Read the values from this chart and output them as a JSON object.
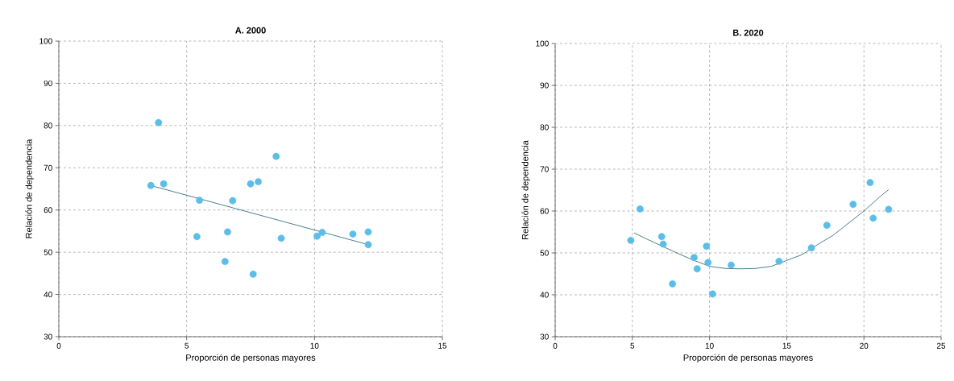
{
  "chart_data": [
    {
      "type": "scatter",
      "title": "**A. 2000**",
      "xlabel": "Proporción de personas mayores",
      "ylabel": "Relación de dependencia",
      "xlim": [
        0,
        15
      ],
      "xticks": [
        0,
        5,
        10,
        15
      ],
      "ylim": [
        30,
        100
      ],
      "yticks": [
        30,
        40,
        50,
        60,
        70,
        80,
        90,
        100
      ],
      "grid": true,
      "series": [
        {
          "type": "scatter",
          "marker": "circle",
          "color": "#5bbde8",
          "x": [
            3.6,
            3.9,
            4.1,
            5.5,
            5.4,
            6.5,
            6.6,
            6.8,
            7.5,
            7.8,
            7.6,
            8.5,
            8.7,
            10.1,
            10.3,
            11.5,
            12.1,
            12.1
          ],
          "values": [
            65.8,
            80.7,
            66.2,
            62.3,
            53.7,
            47.8,
            54.8,
            62.2,
            66.2,
            66.7,
            44.8,
            72.7,
            53.3,
            53.8,
            54.7,
            54.3,
            54.8,
            51.8
          ]
        },
        {
          "type": "line",
          "marker": "none",
          "color": "#1a5f6e",
          "line_style": "solid",
          "x": [
            3.6,
            12.1
          ],
          "values": [
            65.8,
            51.8
          ]
        }
      ]
    },
    {
      "type": "scatter",
      "title": "**B. 2020**",
      "xlabel": "Proporción de personas mayores",
      "ylabel": "Relación de dependencia",
      "xlim": [
        0,
        25
      ],
      "xticks": [
        0,
        5,
        10,
        15,
        20,
        25
      ],
      "ylim": [
        30,
        100
      ],
      "yticks": [
        30,
        40,
        50,
        60,
        70,
        80,
        90,
        100
      ],
      "grid": true,
      "series": [
        {
          "type": "scatter",
          "marker": "circle",
          "color": "#5bbde8",
          "x": [
            4.9,
            5.5,
            6.9,
            7.0,
            7.6,
            9.0,
            9.2,
            9.8,
            9.9,
            10.2,
            11.4,
            14.5,
            16.6,
            17.6,
            19.3,
            20.4,
            20.6,
            21.6
          ],
          "values": [
            53.0,
            60.5,
            53.9,
            52.1,
            42.6,
            48.9,
            46.2,
            51.6,
            47.7,
            40.2,
            47.1,
            48.0,
            51.2,
            56.6,
            61.6,
            66.8,
            58.3,
            60.4
          ]
        },
        {
          "type": "line",
          "marker": "none",
          "color": "#1a5f6e",
          "line_style": "solid",
          "x": [
            5.1,
            6,
            7,
            8,
            9,
            10,
            11,
            12,
            13,
            14,
            15,
            16,
            17,
            18,
            19,
            20,
            21,
            21.6
          ],
          "values": [
            54.8,
            53.2,
            51.5,
            49.8,
            48.2,
            46.8,
            46.3,
            46.2,
            46.3,
            46.8,
            48.2,
            49.6,
            52.0,
            54.2,
            57.1,
            60.0,
            63.3,
            65.1
          ]
        }
      ]
    }
  ]
}
